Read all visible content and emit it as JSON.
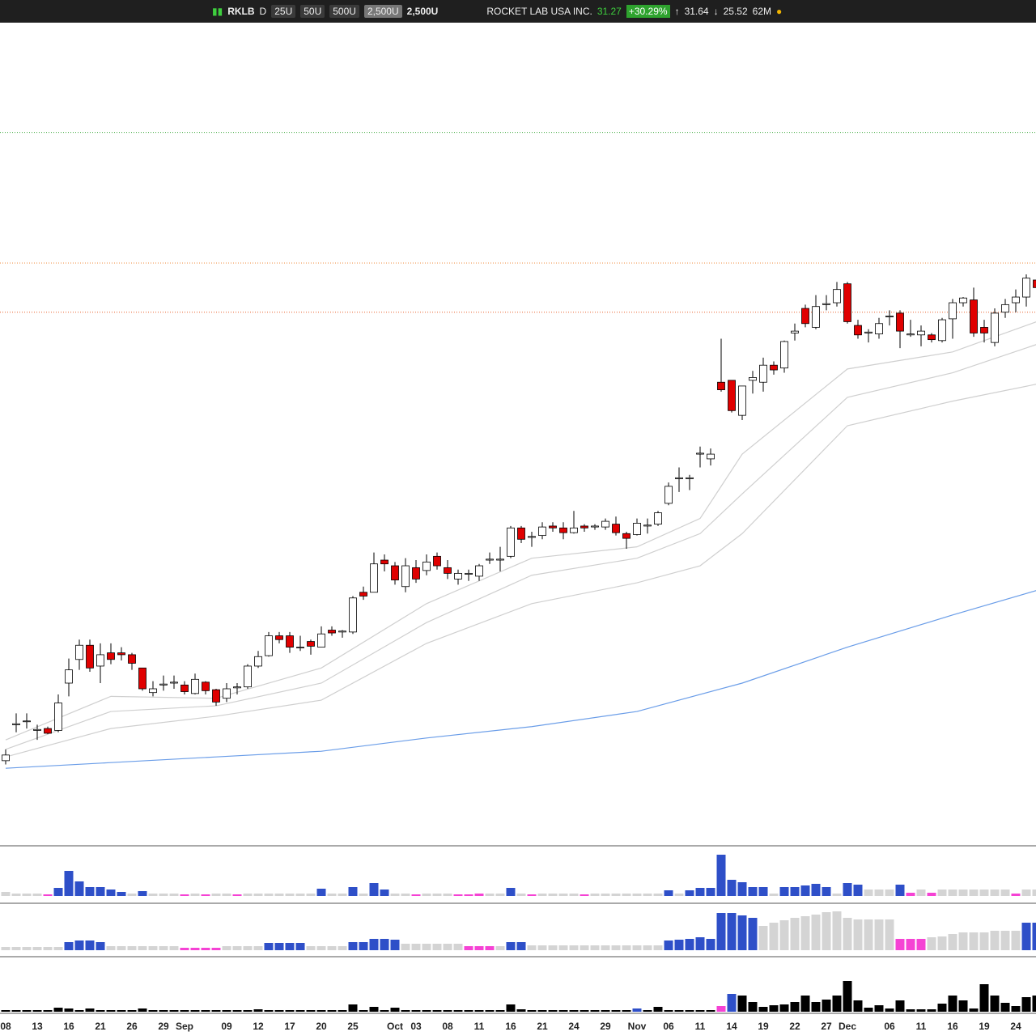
{
  "toolbar": {
    "symbol": "RKLB",
    "interval": "D",
    "units": [
      "25U",
      "50U",
      "500U",
      "2,500U"
    ],
    "unit_select": "2,500U",
    "company": "ROCKET LAB USA INC.",
    "last": "31.27",
    "change": "+30.29%",
    "high": "31.64",
    "low": "25.52",
    "volume": "62M"
  },
  "chart_data": {
    "type": "candlestick",
    "categories": [
      "08",
      null,
      null,
      "13",
      null,
      null,
      "16",
      null,
      null,
      "21",
      null,
      null,
      "26",
      null,
      null,
      "29",
      null,
      "Sep",
      null,
      null,
      null,
      "09",
      null,
      null,
      "12",
      null,
      null,
      "17",
      null,
      null,
      "20",
      null,
      null,
      "25",
      null,
      null,
      null,
      "Oct",
      null,
      "03",
      null,
      null,
      "08",
      null,
      null,
      "11",
      null,
      null,
      "16",
      null,
      null,
      "21",
      null,
      null,
      "24",
      null,
      null,
      "29",
      null,
      null,
      "Nov",
      null,
      null,
      "06",
      null,
      null,
      "11",
      null,
      null,
      "14",
      null,
      null,
      "19",
      null,
      null,
      "22",
      null,
      null,
      "27",
      null,
      "Dec",
      null,
      null,
      null,
      "06",
      null,
      null,
      "11",
      null,
      null,
      "16",
      null,
      null,
      "19",
      null,
      null,
      "24",
      null,
      null
    ],
    "open": [
      6.0,
      7.9,
      8.1,
      7.6,
      7.7,
      7.6,
      10.1,
      11.35,
      12.1,
      11.0,
      11.7,
      11.7,
      11.6,
      10.9,
      9.6,
      10.0,
      10.1,
      10.0,
      9.55,
      10.15,
      9.75,
      9.3,
      9.85,
      9.9,
      11.0,
      11.55,
      12.6,
      12.6,
      12.0,
      12.3,
      12.0,
      12.9,
      12.8,
      12.8,
      14.9,
      14.9,
      16.6,
      16.3,
      15.2,
      16.2,
      16.05,
      16.8,
      16.2,
      15.6,
      15.85,
      15.75,
      16.6,
      16.6,
      16.8,
      18.3,
      17.8,
      17.9,
      18.4,
      18.3,
      18.05,
      18.4,
      18.35,
      18.35,
      18.5,
      18.0,
      17.95,
      18.4,
      18.5,
      19.6,
      20.9,
      20.9,
      22.2,
      21.95,
      26.0,
      26.1,
      24.25,
      26.1,
      26.0,
      26.9,
      26.75,
      28.6,
      29.9,
      28.9,
      30.1,
      30.2,
      31.2,
      29.0,
      28.6,
      28.55,
      29.45,
      29.65,
      28.5,
      28.5,
      28.5,
      28.2,
      29.35,
      30.2,
      30.35,
      28.9,
      28.1,
      29.7,
      30.2,
      30.5,
      31.4
    ],
    "high": [
      6.6,
      8.5,
      8.5,
      7.9,
      7.8,
      9.5,
      11.4,
      12.4,
      12.4,
      12.2,
      12.2,
      12.0,
      11.7,
      10.9,
      10.2,
      10.5,
      10.5,
      10.2,
      10.6,
      10.2,
      9.8,
      10.1,
      10.1,
      11.1,
      11.8,
      12.8,
      12.8,
      12.8,
      12.6,
      12.4,
      13.1,
      13.1,
      12.9,
      14.7,
      15.2,
      17.0,
      16.9,
      16.5,
      16.7,
      16.6,
      16.9,
      17.0,
      16.6,
      16.1,
      16.1,
      16.4,
      17.0,
      17.3,
      18.4,
      18.4,
      18.1,
      18.6,
      18.6,
      18.6,
      19.2,
      18.5,
      18.5,
      18.8,
      18.9,
      18.1,
      18.8,
      18.8,
      19.2,
      20.7,
      21.5,
      21.1,
      22.6,
      22.5,
      28.3,
      26.1,
      25.8,
      26.6,
      27.3,
      27.1,
      28.2,
      29.1,
      30.1,
      30.6,
      30.6,
      31.3,
      31.3,
      29.3,
      28.8,
      29.4,
      29.8,
      29.8,
      29.3,
      29.0,
      28.6,
      29.4,
      30.4,
      30.5,
      31.0,
      29.3,
      29.9,
      30.4,
      30.9,
      31.7,
      31.5
    ],
    "low": [
      5.8,
      7.5,
      7.7,
      7.1,
      7.4,
      7.5,
      9.4,
      10.8,
      10.7,
      10.1,
      11.1,
      11.3,
      10.8,
      9.7,
      9.4,
      9.7,
      9.8,
      9.5,
      9.5,
      9.5,
      8.9,
      9.1,
      9.5,
      9.8,
      10.9,
      11.5,
      12.2,
      11.7,
      11.8,
      11.6,
      12.0,
      12.6,
      12.5,
      12.7,
      14.5,
      14.9,
      16.0,
      15.3,
      14.9,
      15.4,
      15.8,
      16.1,
      15.6,
      15.3,
      15.5,
      15.5,
      16.4,
      16.0,
      16.7,
      17.5,
      17.3,
      17.7,
      18.1,
      17.7,
      18.0,
      18.1,
      18.2,
      18.2,
      17.9,
      17.2,
      17.9,
      18.0,
      18.4,
      19.5,
      20.2,
      20.3,
      21.5,
      21.6,
      25.5,
      24.4,
      24.0,
      25.4,
      25.5,
      26.4,
      26.5,
      28.2,
      28.9,
      28.8,
      29.8,
      30.0,
      29.1,
      28.3,
      28.1,
      28.3,
      29.0,
      27.8,
      28.4,
      27.9,
      28.1,
      28.1,
      28.3,
      30.0,
      28.4,
      28.1,
      27.9,
      29.4,
      29.7,
      30.0,
      30.8
    ],
    "close": [
      6.3,
      7.95,
      8.1,
      7.65,
      7.45,
      9.05,
      10.8,
      12.1,
      10.9,
      11.6,
      11.35,
      11.6,
      11.15,
      9.8,
      9.8,
      10.05,
      10.15,
      9.65,
      10.3,
      9.7,
      9.1,
      9.8,
      9.9,
      11.0,
      11.5,
      12.6,
      12.4,
      12.0,
      12.0,
      12.05,
      12.7,
      12.75,
      12.85,
      14.6,
      14.7,
      16.4,
      16.4,
      15.55,
      16.3,
      15.6,
      16.5,
      16.3,
      15.9,
      15.9,
      15.9,
      16.3,
      16.65,
      16.65,
      18.3,
      17.7,
      17.85,
      18.35,
      18.3,
      18.05,
      18.3,
      18.3,
      18.4,
      18.65,
      18.05,
      17.75,
      18.55,
      18.45,
      19.1,
      20.5,
      20.95,
      20.95,
      22.25,
      22.2,
      25.6,
      24.5,
      25.8,
      26.25,
      26.9,
      26.65,
      28.15,
      28.7,
      29.1,
      30.0,
      30.15,
      30.9,
      29.2,
      28.5,
      28.65,
      29.1,
      29.5,
      28.7,
      28.55,
      28.7,
      28.25,
      29.3,
      30.2,
      30.45,
      28.6,
      28.6,
      29.65,
      30.1,
      30.5,
      31.5,
      31.0
    ],
    "up_color": "#ffffff",
    "down_color": "#e00000",
    "ylim": [
      3,
      45
    ],
    "overlays": [
      {
        "color": "#6a9de8",
        "x": [
          0,
          10,
          20,
          30,
          40,
          50,
          60,
          70,
          80,
          90,
          98
        ],
        "values": [
          5.6,
          5.9,
          6.2,
          6.5,
          7.2,
          7.8,
          8.6,
          10.1,
          12.0,
          13.7,
          15.0
        ]
      },
      {
        "color": "#cfcfcf",
        "x": [
          0,
          10,
          20,
          30,
          40,
          50,
          60,
          66,
          70,
          80,
          90,
          98
        ],
        "values": [
          7.1,
          9.4,
          9.3,
          10.9,
          14.3,
          16.7,
          17.3,
          18.8,
          22.2,
          26.7,
          27.6,
          29.2
        ]
      },
      {
        "color": "#cfcfcf",
        "x": [
          0,
          10,
          20,
          30,
          40,
          50,
          60,
          66,
          70,
          80,
          90,
          98
        ],
        "values": [
          6.6,
          8.6,
          8.9,
          10.1,
          13.3,
          15.8,
          16.7,
          18.0,
          20.1,
          25.2,
          26.5,
          28.0
        ]
      },
      {
        "color": "#cfcfcf",
        "x": [
          0,
          10,
          20,
          30,
          40,
          50,
          60,
          66,
          70,
          80,
          90,
          98
        ],
        "values": [
          6.2,
          7.7,
          8.35,
          9.2,
          12.2,
          14.3,
          15.4,
          16.3,
          18.0,
          23.7,
          25.0,
          25.9
        ]
      }
    ],
    "levels": [
      {
        "value": 39.2,
        "color": "#3aa83a"
      },
      {
        "value": 32.3,
        "color": "#f08a3a"
      },
      {
        "value": 29.7,
        "color": "#e8602a"
      }
    ],
    "palette": {
      "b": "#2e4fc8",
      "g": "#d4d4d4",
      "m": "#f542d4",
      "k": "#000000"
    },
    "volume_panels": [
      {
        "values": [
          5,
          3,
          3,
          3,
          2,
          10,
          31,
          18,
          11,
          11,
          8,
          5,
          3,
          6,
          3,
          3,
          3,
          2,
          3,
          2,
          3,
          3,
          2,
          3,
          3,
          3,
          3,
          3,
          3,
          3,
          9,
          3,
          3,
          11,
          3,
          16,
          8,
          3,
          3,
          2,
          3,
          3,
          3,
          2,
          2,
          3,
          3,
          3,
          10,
          3,
          2,
          3,
          3,
          3,
          3,
          2,
          3,
          3,
          3,
          3,
          3,
          3,
          3,
          7,
          3,
          7,
          10,
          10,
          51,
          20,
          17,
          11,
          11,
          3,
          11,
          11,
          13,
          15,
          11,
          3,
          16,
          14,
          8,
          8,
          8,
          14,
          4,
          8,
          4,
          8,
          8,
          8,
          8,
          8,
          8,
          8,
          3,
          8,
          8
        ],
        "colors": [
          "g",
          "g",
          "g",
          "g",
          "m",
          "b",
          "b",
          "b",
          "b",
          "b",
          "b",
          "b",
          "g",
          "b",
          "g",
          "g",
          "g",
          "m",
          "g",
          "m",
          "g",
          "g",
          "m",
          "g",
          "g",
          "g",
          "g",
          "g",
          "g",
          "g",
          "b",
          "g",
          "g",
          "b",
          "g",
          "b",
          "b",
          "g",
          "g",
          "m",
          "g",
          "g",
          "g",
          "m",
          "m",
          "m",
          "g",
          "g",
          "b",
          "g",
          "m",
          "g",
          "g",
          "g",
          "g",
          "m",
          "g",
          "g",
          "g",
          "g",
          "g",
          "g",
          "g",
          "b",
          "g",
          "b",
          "b",
          "b",
          "b",
          "b",
          "b",
          "b",
          "b",
          "g",
          "b",
          "b",
          "b",
          "b",
          "b",
          "g",
          "b",
          "b",
          "g",
          "g",
          "g",
          "b",
          "m",
          "g",
          "m",
          "g",
          "g",
          "g",
          "g",
          "g",
          "g",
          "g",
          "m",
          "g",
          "g"
        ]
      },
      {
        "values": [
          4,
          4,
          4,
          4,
          4,
          4,
          10,
          12,
          12,
          10,
          5,
          5,
          5,
          5,
          5,
          5,
          5,
          3,
          3,
          3,
          3,
          5,
          5,
          5,
          5,
          9,
          9,
          9,
          9,
          5,
          5,
          5,
          5,
          10,
          10,
          14,
          14,
          13,
          8,
          8,
          8,
          8,
          8,
          8,
          5,
          5,
          5,
          5,
          10,
          10,
          6,
          6,
          6,
          6,
          6,
          6,
          6,
          6,
          6,
          6,
          6,
          6,
          6,
          12,
          13,
          14,
          16,
          14,
          46,
          46,
          43,
          40,
          30,
          34,
          37,
          40,
          42,
          44,
          47,
          48,
          40,
          38,
          38,
          38,
          38,
          14,
          14,
          14,
          16,
          17,
          20,
          22,
          22,
          22,
          24,
          24,
          24,
          34,
          34
        ],
        "colors": [
          "g",
          "g",
          "g",
          "g",
          "g",
          "g",
          "b",
          "b",
          "b",
          "b",
          "g",
          "g",
          "g",
          "g",
          "g",
          "g",
          "g",
          "m",
          "m",
          "m",
          "m",
          "g",
          "g",
          "g",
          "g",
          "b",
          "b",
          "b",
          "b",
          "g",
          "g",
          "g",
          "g",
          "b",
          "b",
          "b",
          "b",
          "b",
          "g",
          "g",
          "g",
          "g",
          "g",
          "g",
          "m",
          "m",
          "m",
          "g",
          "b",
          "b",
          "g",
          "g",
          "g",
          "g",
          "g",
          "g",
          "g",
          "g",
          "g",
          "g",
          "g",
          "g",
          "g",
          "b",
          "b",
          "b",
          "b",
          "b",
          "b",
          "b",
          "b",
          "b",
          "g",
          "g",
          "g",
          "g",
          "g",
          "g",
          "g",
          "g",
          "g",
          "g",
          "g",
          "g",
          "g",
          "m",
          "m",
          "m",
          "g",
          "g",
          "g",
          "g",
          "g",
          "g",
          "g",
          "g",
          "g",
          "b",
          "b"
        ]
      },
      {
        "values": [
          2,
          2,
          2,
          2,
          2,
          5,
          4,
          2,
          4,
          2,
          2,
          2,
          2,
          4,
          2,
          2,
          2,
          2,
          2,
          2,
          2,
          2,
          2,
          2,
          3,
          2,
          2,
          2,
          2,
          2,
          2,
          2,
          2,
          9,
          2,
          6,
          2,
          5,
          2,
          2,
          2,
          2,
          2,
          2,
          2,
          2,
          2,
          2,
          9,
          3,
          2,
          2,
          2,
          2,
          2,
          2,
          2,
          2,
          2,
          2,
          4,
          2,
          6,
          2,
          2,
          2,
          2,
          2,
          7,
          22,
          20,
          12,
          6,
          8,
          9,
          12,
          20,
          12,
          15,
          20,
          38,
          14,
          5,
          8,
          4,
          14,
          3,
          3,
          3,
          10,
          20,
          14,
          4,
          34,
          20,
          11,
          7,
          18,
          20
        ],
        "colors": [
          "k",
          "k",
          "k",
          "k",
          "k",
          "k",
          "k",
          "k",
          "k",
          "k",
          "k",
          "k",
          "k",
          "k",
          "k",
          "k",
          "k",
          "k",
          "k",
          "k",
          "k",
          "k",
          "k",
          "k",
          "k",
          "k",
          "k",
          "k",
          "k",
          "k",
          "k",
          "k",
          "k",
          "k",
          "k",
          "k",
          "k",
          "k",
          "k",
          "k",
          "k",
          "k",
          "k",
          "k",
          "k",
          "k",
          "k",
          "k",
          "k",
          "k",
          "k",
          "k",
          "k",
          "k",
          "k",
          "k",
          "k",
          "k",
          "k",
          "k",
          "b",
          "k",
          "k",
          "k",
          "k",
          "k",
          "k",
          "k",
          "m",
          "b",
          "k",
          "k",
          "k",
          "k",
          "k",
          "k",
          "k",
          "k",
          "k",
          "k",
          "k",
          "k",
          "k",
          "k",
          "k",
          "k",
          "k",
          "k",
          "k",
          "k",
          "k",
          "k",
          "k",
          "k",
          "k",
          "k",
          "k",
          "k",
          "k"
        ]
      }
    ]
  }
}
